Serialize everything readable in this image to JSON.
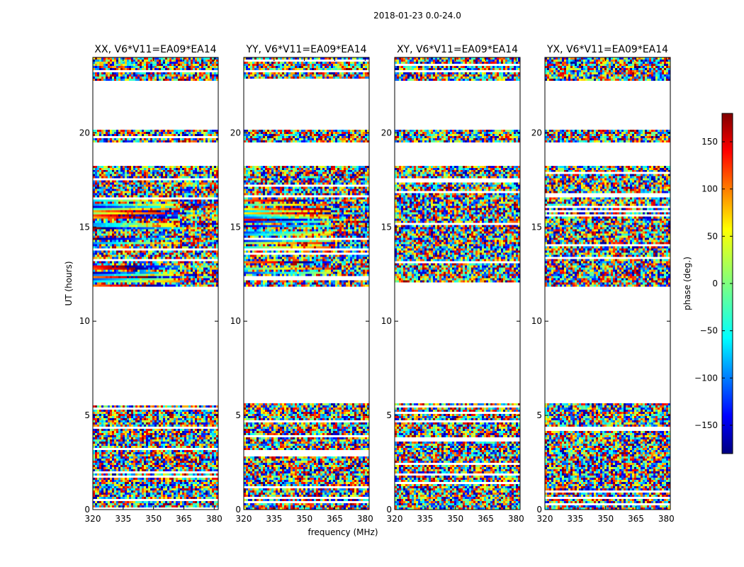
{
  "chart_data": {
    "type": "heatmap",
    "title": "2018-01-23 0.0-24.0",
    "xlabel": "frequency (MHz)",
    "ylabel": "UT (hours)",
    "xlim": [
      320,
      382
    ],
    "ylim": [
      0,
      24
    ],
    "x_ticks": [
      "320",
      "335",
      "350",
      "365",
      "380"
    ],
    "y_ticks": [
      "0",
      "5",
      "10",
      "15",
      "20"
    ],
    "colorbar": {
      "label": "phase (deg.)",
      "range": [
        -180,
        180
      ],
      "ticks": [
        "150",
        "100",
        "50",
        "0",
        "−50",
        "−100",
        "−150"
      ],
      "tick_values": [
        150,
        100,
        50,
        0,
        -50,
        -100,
        -150
      ],
      "colormap": "jet",
      "colors": [
        "#000080",
        "#0000ff",
        "#00ffff",
        "#ffff00",
        "#ff0000",
        "#800000"
      ]
    },
    "panels": [
      {
        "title": "XX, V6*V11=EA09*EA14",
        "pol": "XX"
      },
      {
        "title": "YY, V6*V11=EA09*EA14",
        "pol": "YY"
      },
      {
        "title": "XY, V6*V11=EA09*EA14",
        "pol": "XY"
      },
      {
        "title": "YX, V6*V11=EA09*EA14",
        "pol": "YX"
      }
    ],
    "data_time_ranges_hours": [
      [
        0.0,
        5.6
      ],
      [
        11.8,
        18.2
      ],
      [
        19.5,
        20.2
      ],
      [
        22.8,
        24.0
      ]
    ]
  }
}
